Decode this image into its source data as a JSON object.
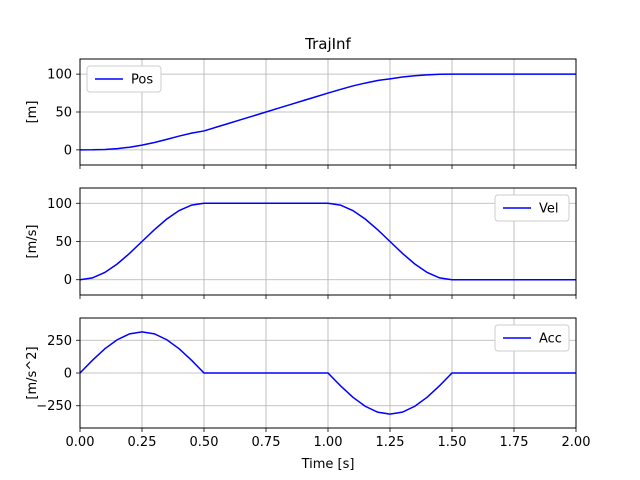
{
  "chart_data": {
    "type": "line",
    "title": "TrajInf",
    "xlabel": "Time [s]",
    "xlim": [
      0,
      2
    ],
    "xticks": [
      0,
      0.25,
      0.5,
      0.75,
      1,
      1.25,
      1.5,
      1.75,
      2
    ],
    "xtick_labels": [
      "0.00",
      "0.25",
      "0.50",
      "0.75",
      "1.00",
      "1.25",
      "1.50",
      "1.75",
      "2.00"
    ],
    "grid": true,
    "line_color": "#0000ff",
    "subplots": [
      {
        "ylabel": "[m]",
        "ylim": [
          -20,
          120
        ],
        "yticks": [
          0,
          50,
          100
        ],
        "legend_position": "upper-left",
        "series": [
          {
            "name": "Pos",
            "x": [
              0,
              0.05,
              0.1,
              0.15,
              0.2,
              0.25,
              0.3,
              0.35,
              0.4,
              0.45,
              0.5,
              0.55,
              0.6,
              0.65,
              0.7,
              0.75,
              0.8,
              0.85,
              0.9,
              0.95,
              1.0,
              1.05,
              1.1,
              1.15,
              1.2,
              1.25,
              1.3,
              1.35,
              1.4,
              1.45,
              1.5,
              1.75,
              2.0
            ],
            "y": [
              0,
              0.06,
              0.5,
              1.58,
              3.49,
              6.25,
              9.75,
              13.8,
              18.2,
              22.1,
              25,
              30,
              35,
              40,
              45,
              50,
              55,
              60,
              65,
              70,
              75,
              79.8,
              84.4,
              88.2,
              91.6,
              93.75,
              96.2,
              97.9,
              99.1,
              99.8,
              100,
              100,
              100
            ]
          }
        ]
      },
      {
        "ylabel": "[m/s]",
        "ylim": [
          -20,
          120
        ],
        "yticks": [
          0,
          50,
          100
        ],
        "legend_position": "upper-right",
        "series": [
          {
            "name": "Vel",
            "x": [
              0,
              0.05,
              0.1,
              0.15,
              0.2,
              0.25,
              0.3,
              0.35,
              0.4,
              0.45,
              0.5,
              0.75,
              1.0,
              1.05,
              1.1,
              1.15,
              1.2,
              1.25,
              1.3,
              1.35,
              1.4,
              1.45,
              1.5,
              1.75,
              2.0
            ],
            "y": [
              0,
              2.4,
              9.5,
              20.6,
              34.5,
              50,
              65.5,
              79.4,
              90.5,
              97.6,
              100,
              100,
              100,
              97.6,
              90.5,
              79.4,
              65.5,
              50,
              34.5,
              20.6,
              9.5,
              2.4,
              0,
              0,
              0
            ]
          }
        ]
      },
      {
        "ylabel": "[m/s^2]",
        "ylim": [
          -420,
          420
        ],
        "yticks": [
          -250,
          0,
          250
        ],
        "legend_position": "upper-right",
        "series": [
          {
            "name": "Acc",
            "x": [
              0,
              0.05,
              0.1,
              0.15,
              0.2,
              0.25,
              0.3,
              0.35,
              0.4,
              0.45,
              0.5,
              0.75,
              1.0,
              1.05,
              1.1,
              1.15,
              1.2,
              1.25,
              1.3,
              1.35,
              1.4,
              1.45,
              1.5,
              1.75,
              2.0
            ],
            "y": [
              0,
              97,
              185,
              254,
              299,
              314,
              299,
              254,
              185,
              97,
              0,
              0,
              0,
              -97,
              -185,
              -254,
              -299,
              -314,
              -299,
              -254,
              -185,
              -97,
              0,
              0,
              0
            ]
          }
        ]
      }
    ]
  }
}
